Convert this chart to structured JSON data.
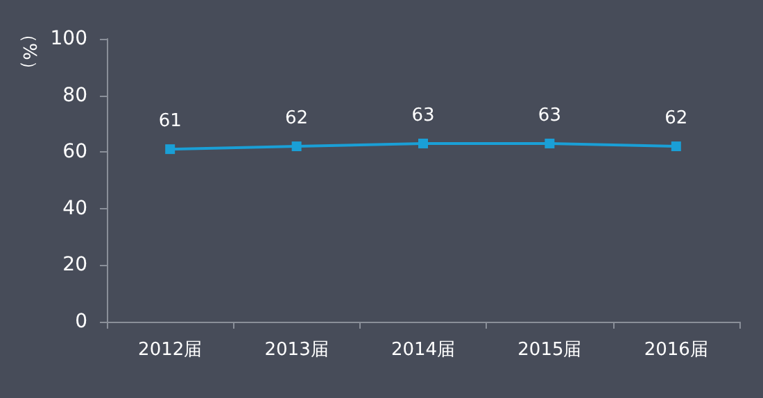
{
  "chart_data": {
    "type": "line",
    "ylabel": "（%）",
    "categories": [
      "2012届",
      "2013届",
      "2014届",
      "2015届",
      "2016届"
    ],
    "series": [
      {
        "color": "#1a9fd6",
        "values": [
          61,
          62,
          63,
          63,
          62
        ]
      }
    ],
    "ylim": [
      0,
      100
    ],
    "yticks": [
      0,
      20,
      40,
      60,
      80,
      100
    ],
    "data_labels": true,
    "marker": "square",
    "line_style": "solid"
  }
}
